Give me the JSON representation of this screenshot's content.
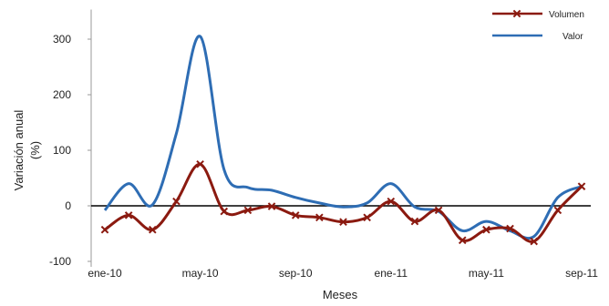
{
  "chart_data": {
    "type": "line",
    "title": "",
    "xlabel": "Meses",
    "ylabel": [
      "Variación anual",
      "(%)"
    ],
    "ylim": [
      -100,
      350
    ],
    "yticks": [
      "-100",
      "0",
      "100",
      "200",
      "300"
    ],
    "grid": false,
    "legend": "top-right",
    "categories": [
      "ene-10",
      "feb-10",
      "mar-10",
      "abr-10",
      "may-10",
      "jun-10",
      "jul-10",
      "ago-10",
      "sep-10",
      "oct-10",
      "nov-10",
      "dic-10",
      "ene-11",
      "feb-11",
      "mar-11",
      "abr-11",
      "may-11",
      "jun-11",
      "jul-11",
      "ago-11",
      "sep-11"
    ],
    "xtick_labels": [
      "ene-10",
      "may-10",
      "sep-10",
      "ene-11",
      "may-11",
      "sep-11"
    ],
    "series": [
      {
        "name": "Volumen",
        "color": "#8B1A10",
        "marker": "x",
        "values": [
          -43,
          -17,
          -43,
          8,
          75,
          -10,
          -8,
          -1,
          -17,
          -21,
          -29,
          -21,
          8,
          -28,
          -8,
          -62,
          -43,
          -41,
          -64,
          -8,
          35
        ]
      },
      {
        "name": "Valor",
        "color": "#2E6DB4",
        "marker": "none",
        "values": [
          -8,
          40,
          2,
          130,
          305,
          65,
          33,
          28,
          15,
          5,
          -2,
          5,
          40,
          -2,
          -10,
          -45,
          -28,
          -45,
          -55,
          15,
          35
        ]
      }
    ]
  }
}
